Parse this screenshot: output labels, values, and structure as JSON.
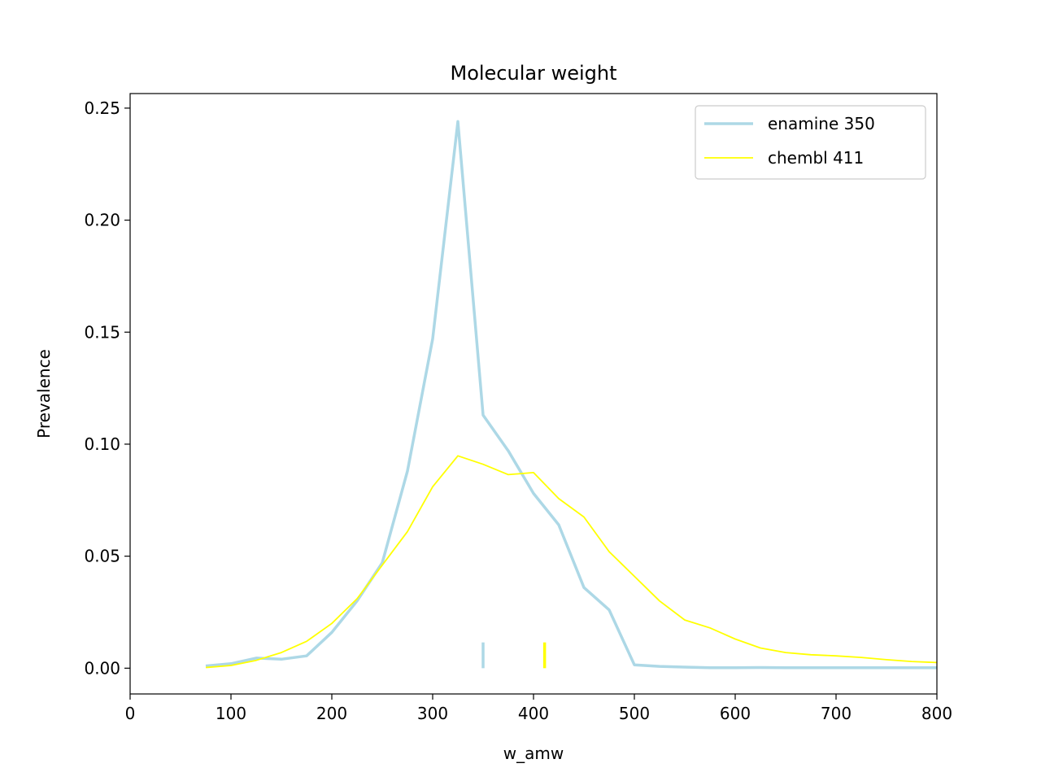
{
  "chart_data": {
    "type": "line",
    "title": "Molecular weight",
    "xlabel": "w_amw",
    "ylabel": "Prevalence",
    "xlim": [
      0,
      800
    ],
    "ylim": [
      -0.0115,
      0.2565
    ],
    "xticks": [
      0,
      100,
      200,
      300,
      400,
      500,
      600,
      700,
      800
    ],
    "xtick_labels": [
      "0",
      "100",
      "200",
      "300",
      "400",
      "500",
      "600",
      "700",
      "800"
    ],
    "yticks": [
      0.0,
      0.05,
      0.1,
      0.15,
      0.2,
      0.25
    ],
    "ytick_labels": [
      "0.00",
      "0.05",
      "0.10",
      "0.15",
      "0.20",
      "0.25"
    ],
    "grid": false,
    "legend_position": "top-right",
    "series": [
      {
        "name": "enamine 350",
        "label": "enamine 350",
        "color": "#add8e6",
        "mean_marker": 350,
        "x": [
          75,
          100,
          125,
          150,
          175,
          200,
          225,
          250,
          275,
          300,
          325,
          350,
          375,
          400,
          425,
          450,
          475,
          500,
          525,
          550,
          575,
          600,
          625,
          650,
          675,
          700,
          725,
          750,
          775,
          800
        ],
        "y": [
          0.001,
          0.002,
          0.0045,
          0.004,
          0.0055,
          0.016,
          0.03,
          0.047,
          0.088,
          0.147,
          0.244,
          0.113,
          0.097,
          0.078,
          0.064,
          0.036,
          0.026,
          0.0015,
          0.0008,
          0.0005,
          0.0002,
          0.0002,
          0.0003,
          0.0002,
          0.0002,
          0.0002,
          0.0002,
          0.0002,
          0.0002,
          0.0002
        ]
      },
      {
        "name": "chembl 411",
        "label": "chembl 411",
        "color": "#ffff00",
        "mean_marker": 411,
        "x": [
          75,
          100,
          125,
          150,
          175,
          200,
          225,
          250,
          275,
          300,
          325,
          350,
          375,
          400,
          425,
          450,
          475,
          500,
          525,
          550,
          575,
          600,
          625,
          650,
          675,
          700,
          725,
          750,
          775,
          800
        ],
        "y": [
          0.0003,
          0.0012,
          0.0035,
          0.007,
          0.012,
          0.02,
          0.031,
          0.046,
          0.061,
          0.081,
          0.0948,
          0.091,
          0.0864,
          0.0873,
          0.0757,
          0.0675,
          0.052,
          0.041,
          0.03,
          0.0215,
          0.018,
          0.013,
          0.009,
          0.007,
          0.006,
          0.0055,
          0.0048,
          0.0038,
          0.003,
          0.0025
        ]
      }
    ]
  }
}
